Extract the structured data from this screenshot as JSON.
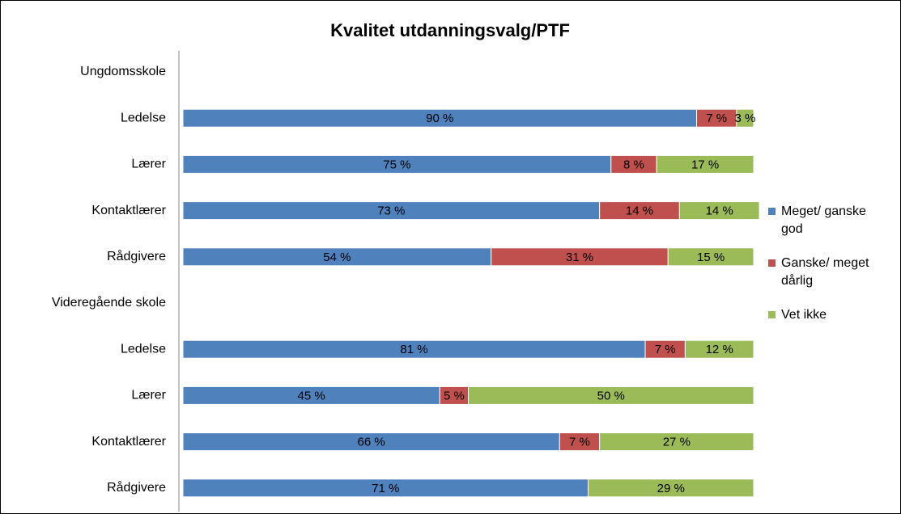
{
  "chart_data": {
    "type": "stacked-bar-horizontal",
    "title": "Kvalitet utdanningsvalg/PTF",
    "categories": [
      "Ungdomsskole",
      "Ledelse",
      "Lærer",
      "Kontaktlærer",
      "Rådgivere",
      "Videregående skole",
      "Ledelse",
      "Lærer",
      "Kontaktlærer",
      "Rådgivere"
    ],
    "series": [
      {
        "name": "Meget/ ganske god",
        "color": "#4f81bd",
        "values": [
          null,
          90,
          75,
          73,
          54,
          null,
          81,
          45,
          66,
          71
        ],
        "value_labels": [
          null,
          "90 %",
          "75 %",
          "73 %",
          "54 %",
          null,
          "81 %",
          "45 %",
          "66 %",
          "71 %"
        ]
      },
      {
        "name": "Ganske/ meget dårlig",
        "color": "#c0504d",
        "values": [
          null,
          7,
          8,
          14,
          31,
          null,
          7,
          5,
          7,
          null
        ],
        "value_labels": [
          null,
          "7 %",
          "8 %",
          "14 %",
          "31 %",
          null,
          "7 %",
          "5 %",
          "7 %",
          null
        ]
      },
      {
        "name": "Vet ikke",
        "color": "#9bbb59",
        "values": [
          null,
          3,
          17,
          14,
          15,
          null,
          12,
          50,
          27,
          29
        ],
        "value_labels": [
          null,
          "3 %",
          "17 %",
          "14 %",
          "15 %",
          null,
          "12 %",
          "50 %",
          "27 %",
          "29 %"
        ]
      }
    ],
    "xlim": [
      0,
      100
    ],
    "legend": "right"
  }
}
